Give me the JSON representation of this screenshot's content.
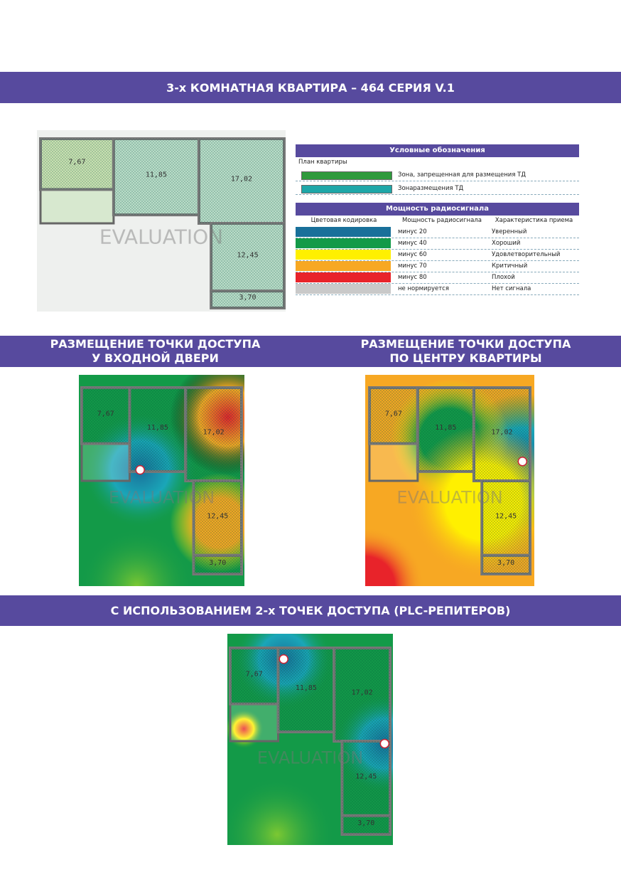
{
  "header": {
    "title": "3-х КОМНАТНАЯ КВАРТИРА – 464 СЕРИЯ V.1"
  },
  "legend": {
    "title": "Условные обозначения",
    "plan": "План квартиры",
    "items": [
      {
        "label": "Зона, запрещенная для размещения ТД",
        "color": "#2f9a3c"
      },
      {
        "label": "Зонаразмещения ТД",
        "color": "#1ea7a8"
      }
    ]
  },
  "signal": {
    "title": "Мощность радиосигнала",
    "headers": [
      "Цветовая кодировка",
      "Мощность радиосигнала",
      "Характеристика приема"
    ],
    "rows": [
      {
        "color": "#19709a",
        "power": "минус 20",
        "quality": "Уверенный"
      },
      {
        "color": "#139a48",
        "power": "минус 40",
        "quality": "Хороший"
      },
      {
        "color": "#fff000",
        "power": "минус 60",
        "quality": "Удовлетворительный"
      },
      {
        "color": "#f7a823",
        "power": "минус 70",
        "quality": "Критичный"
      },
      {
        "color": "#e8232a",
        "power": "минус 80",
        "quality": "Плохой"
      },
      {
        "color": "#c9c9c9",
        "power": "не нормируется",
        "quality": "Нет сигнала"
      }
    ]
  },
  "sections": [
    {
      "lines": [
        "РАЗМЕЩЕНИЕ ТОЧКИ ДОСТУПА",
        "У ВХОДНОЙ ДВЕРИ"
      ]
    },
    {
      "lines": [
        "РАЗМЕЩЕНИЕ ТОЧКИ ДОСТУПА",
        "ПО ЦЕНТРУ КВАРТИРЫ"
      ]
    }
  ],
  "bottom": {
    "title": "С ИСПОЛЬЗОВАНИЕМ 2-х ТОЧЕК ДОСТУПА (PLC-РЕПИТЕРОВ)"
  },
  "plan": {
    "rooms": [
      "7,67",
      "11,85",
      "17,02",
      "12,45",
      "3,70"
    ],
    "watermark": "EVALUATION"
  }
}
